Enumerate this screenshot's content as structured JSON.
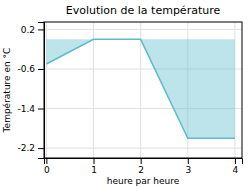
{
  "chart_data": {
    "type": "area",
    "title": "Evolution de la température",
    "xlabel": "heure par heure",
    "ylabel": "Température en °C",
    "x": [
      0,
      1,
      2,
      3,
      4
    ],
    "values": [
      -0.5,
      0.0,
      0.0,
      -2.0,
      -2.0
    ],
    "color": "#5bbccc",
    "xlim": [
      -0.05,
      4.15
    ],
    "ylim": [
      -2.4,
      0.35
    ],
    "xticks": [
      0,
      1,
      2,
      3,
      4
    ],
    "yticks": [
      0.2,
      -0.6,
      -1.4,
      -2.2
    ],
    "grid": true
  }
}
